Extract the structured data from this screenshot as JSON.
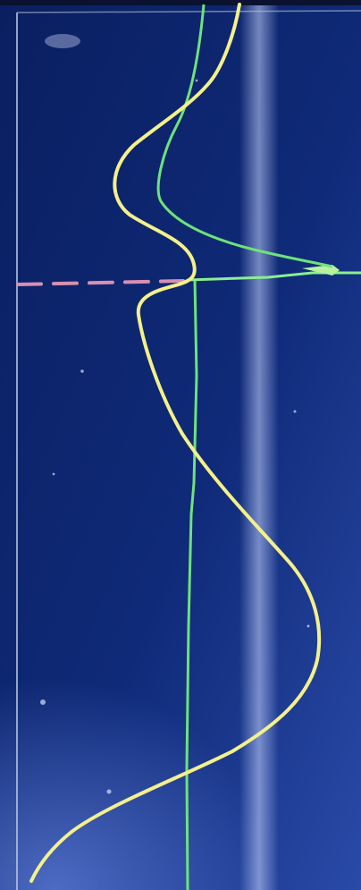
{
  "display": {
    "background_color": "#0d2266",
    "frame_color": "#b8c4e0",
    "reflection_color": "#c9d6ff"
  },
  "traces": [
    {
      "name": "yellow-trace",
      "color": "#f4f08a"
    },
    {
      "name": "green-trace",
      "color": "#6fe27a"
    }
  ],
  "marker": {
    "name": "cursor-line",
    "color": "#d88fb2",
    "style": "dashed"
  }
}
